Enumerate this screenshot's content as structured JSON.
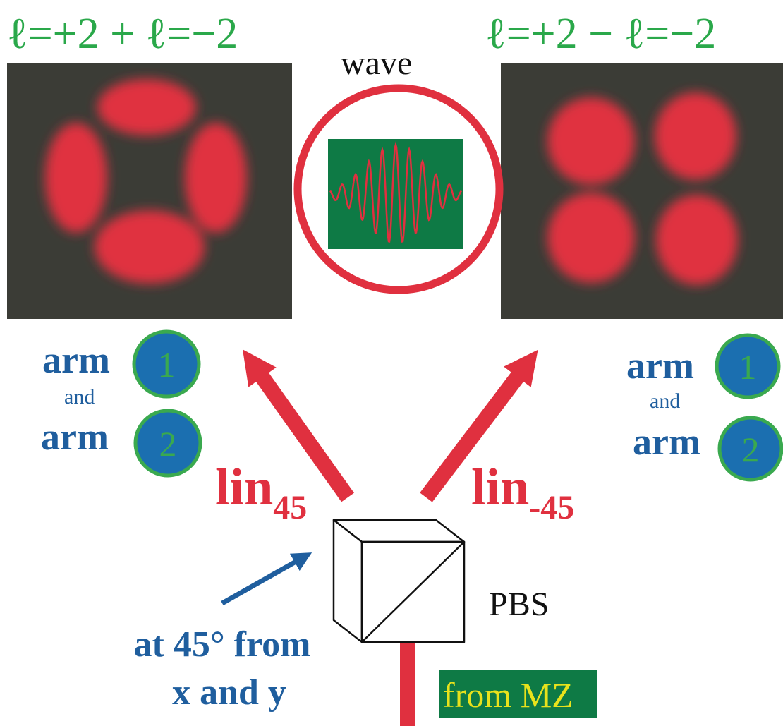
{
  "titles": {
    "left": "ℓ=+2 + ℓ=−2",
    "right": "ℓ=+2 − ℓ=−2"
  },
  "wave": {
    "label": "wave"
  },
  "arms": {
    "left": {
      "arm1_word": "arm",
      "and": "and",
      "arm2_word": "arm",
      "num1": "1",
      "num2": "2"
    },
    "right": {
      "arm1_word": "arm",
      "and": "and",
      "arm2_word": "arm",
      "num1": "1",
      "num2": "2"
    }
  },
  "outputs": {
    "left": {
      "base": "lin",
      "subscript": "45"
    },
    "right": {
      "base": "lin",
      "subscript": "-45"
    }
  },
  "pbs": {
    "label": "PBS"
  },
  "orientation_note": {
    "line1": "at 45° from",
    "line2": "x and y"
  },
  "input": {
    "label": "from MZ"
  },
  "colors": {
    "green_text": "#2aa84a",
    "blue_text": "#1f5e9e",
    "red": "#e0303f",
    "panel_bg": "#3b3c36",
    "wave_bg": "#0e7a45",
    "circle_fill": "#1b6fb0",
    "circle_ring": "#3aa94f",
    "label_box_bg": "#0e7a45",
    "label_box_text": "#e8e21c"
  }
}
